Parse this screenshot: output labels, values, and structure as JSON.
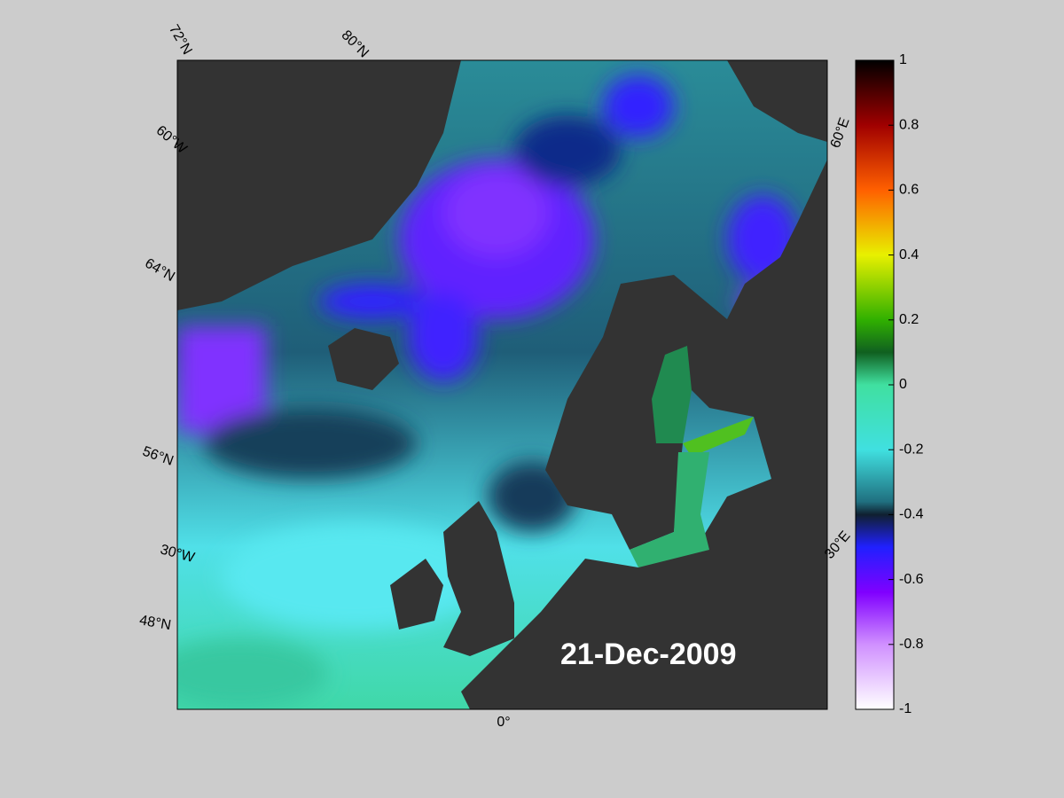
{
  "map": {
    "date_label": "21-Dec-2009",
    "graticule_labels": [
      "72°N",
      "80°N",
      "60°W",
      "64°N",
      "56°N",
      "30°W",
      "48°N",
      "0°",
      "60°E",
      "30°E"
    ],
    "colorbar": {
      "lim": [
        -1,
        1
      ],
      "ticks": [
        1,
        0.8,
        0.6,
        0.4,
        0.2,
        0,
        -0.2,
        -0.4,
        -0.6,
        -0.8,
        -1
      ]
    }
  }
}
